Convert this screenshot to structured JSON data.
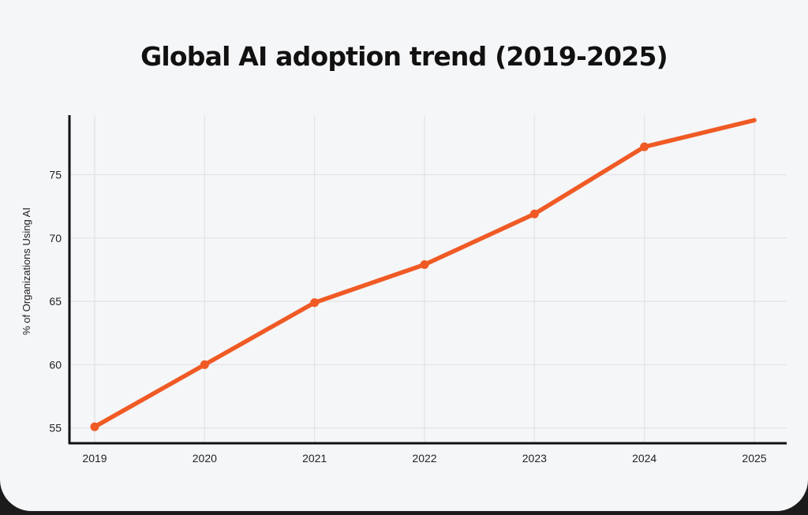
{
  "chart_data": {
    "type": "line",
    "title": "Global AI adoption trend (2019-2025)",
    "xlabel": "",
    "ylabel": "% of Organizations Using AI",
    "x": [
      "2019",
      "2020",
      "2021",
      "2022",
      "2023",
      "2024",
      "2025"
    ],
    "series": [
      {
        "name": "AI adoption",
        "color": "#f05a24",
        "values": [
          55.1,
          60.0,
          64.9,
          67.9,
          71.9,
          77.2,
          79.3
        ],
        "markers": [
          true,
          true,
          true,
          true,
          true,
          true,
          false
        ]
      }
    ],
    "yticks": [
      55,
      60,
      65,
      70,
      75
    ],
    "ylim": [
      53.8,
      79.7
    ],
    "grid": true,
    "legend": "none",
    "colors": {
      "background": "#f5f6f8",
      "grid": "#e2e3e6",
      "axis": "#111111",
      "line": "#f05a24"
    }
  }
}
